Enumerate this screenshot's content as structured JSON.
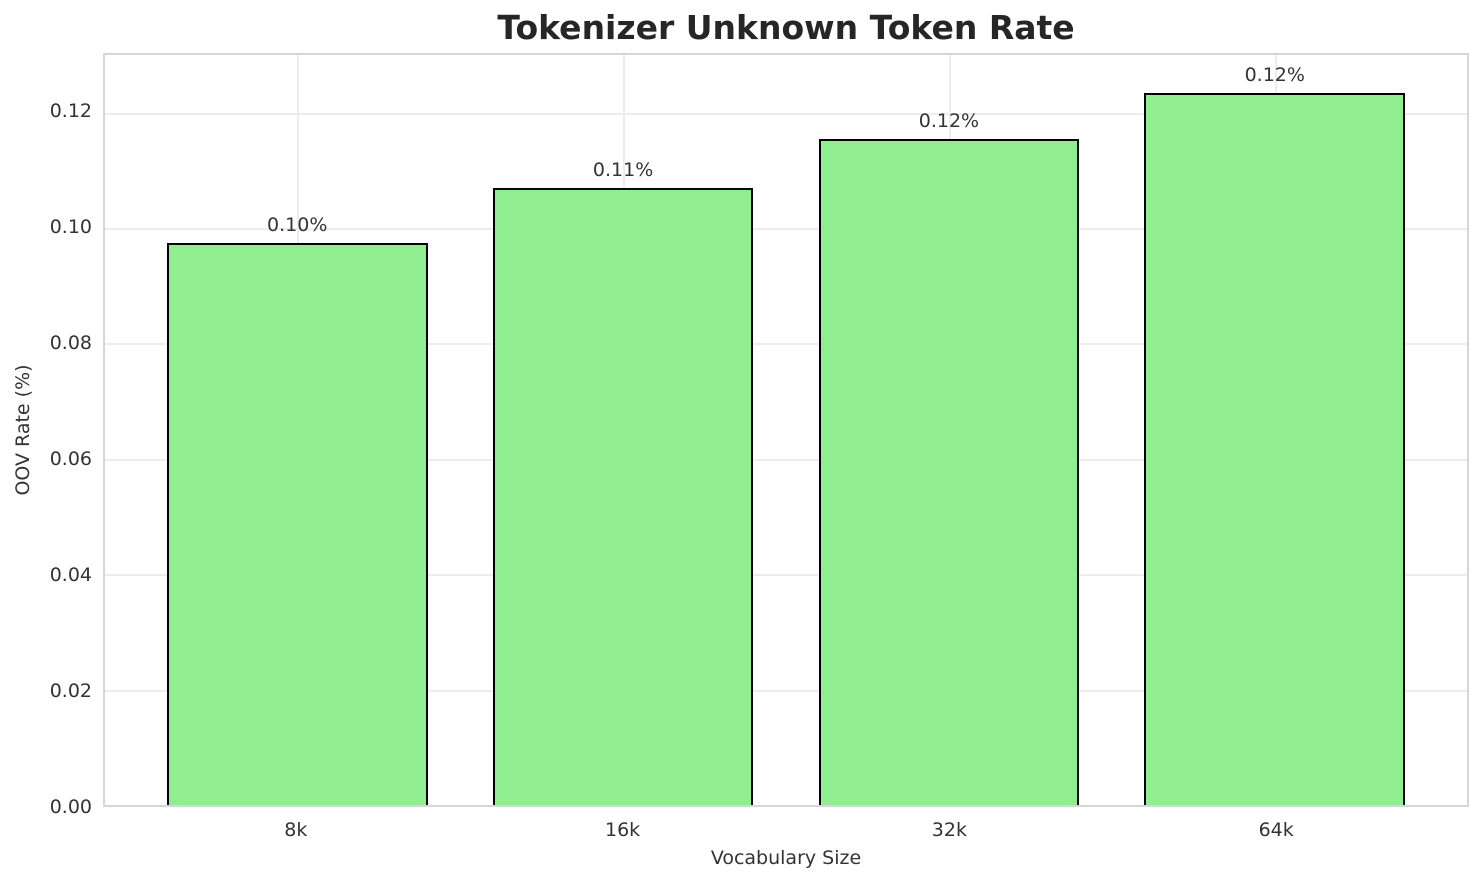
{
  "chart_data": {
    "type": "bar",
    "title": "Tokenizer Unknown Token Rate",
    "xlabel": "Vocabulary Size",
    "ylabel": "OOV Rate (%)",
    "categories": [
      "8k",
      "16k",
      "32k",
      "64k"
    ],
    "values": [
      0.0975,
      0.107,
      0.1155,
      0.1235
    ],
    "bar_labels": [
      "0.10%",
      "0.11%",
      "0.12%",
      "0.12%"
    ],
    "ylim": [
      0,
      0.13
    ],
    "yticks": [
      0.0,
      0.02,
      0.04,
      0.06,
      0.08,
      0.1,
      0.12
    ],
    "ytick_labels": [
      "0.00",
      "0.02",
      "0.04",
      "0.06",
      "0.08",
      "0.10",
      "0.12"
    ],
    "grid": true,
    "legend": "none",
    "bar_color": "#90EE90",
    "bar_edge_color": "#000000",
    "grid_color": "#ededed",
    "spine_color": "#d6d6d6",
    "text_color": "#333333",
    "title_color": "#262626",
    "background_color": "#ffffff"
  }
}
